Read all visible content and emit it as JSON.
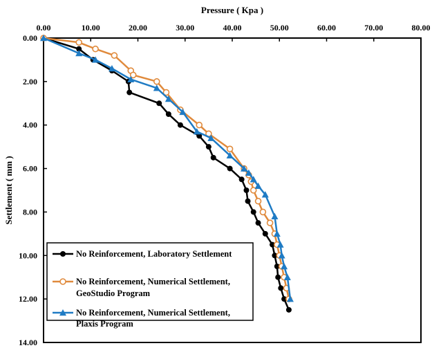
{
  "chart_data": {
    "type": "line",
    "xlabel": "Pressure ( Kpa )",
    "ylabel": "Settlement ( mm )",
    "xlim": [
      0,
      80
    ],
    "ylim": [
      0,
      14
    ],
    "x_axis_position": "top",
    "y_axis_inverted": true,
    "x_ticks": [
      "0.00",
      "10.00",
      "20.00",
      "30.00",
      "40.00",
      "50.00",
      "60.00",
      "70.00",
      "80.00"
    ],
    "y_ticks": [
      "0.00",
      "2.00",
      "4.00",
      "6.00",
      "8.00",
      "10.00",
      "12.00",
      "14.00"
    ],
    "grid": false,
    "legend_position": "bottom-left",
    "series": [
      {
        "name": "No Reinforcement, Laboratory Settlement",
        "color": "#000000",
        "marker": "filled-circle",
        "points": [
          [
            0,
            0
          ],
          [
            7.5,
            0.5
          ],
          [
            10.5,
            1.0
          ],
          [
            14.5,
            1.5
          ],
          [
            18,
            2.0
          ],
          [
            18.2,
            2.5
          ],
          [
            24.5,
            3.0
          ],
          [
            26.5,
            3.5
          ],
          [
            29,
            4.0
          ],
          [
            33,
            4.5
          ],
          [
            35,
            5.0
          ],
          [
            36,
            5.5
          ],
          [
            39.5,
            6.0
          ],
          [
            42,
            6.5
          ],
          [
            43,
            7.0
          ],
          [
            43.3,
            7.5
          ],
          [
            44.5,
            8.0
          ],
          [
            45.5,
            8.5
          ],
          [
            47,
            9.0
          ],
          [
            48.5,
            9.5
          ],
          [
            49,
            10.0
          ],
          [
            49.5,
            10.5
          ],
          [
            49.7,
            11.0
          ],
          [
            50.3,
            11.5
          ],
          [
            51,
            12.0
          ],
          [
            52,
            12.5
          ]
        ]
      },
      {
        "name": "No Reinforcement, Numerical Settlement, GeoStudio Program",
        "color": "#E08A3C",
        "marker": "open-circle",
        "points": [
          [
            0,
            0
          ],
          [
            7.5,
            0.2
          ],
          [
            11,
            0.5
          ],
          [
            15,
            0.8
          ],
          [
            18.5,
            1.5
          ],
          [
            19,
            1.7
          ],
          [
            24,
            2.0
          ],
          [
            26,
            2.5
          ],
          [
            29,
            3.3
          ],
          [
            33,
            4.0
          ],
          [
            35,
            4.4
          ],
          [
            39.5,
            5.1
          ],
          [
            42.5,
            6.0
          ],
          [
            43.5,
            6.3
          ],
          [
            44,
            6.6
          ],
          [
            44.5,
            7.0
          ],
          [
            45.5,
            7.5
          ],
          [
            46.5,
            8.0
          ],
          [
            48,
            8.5
          ],
          [
            49,
            9.0
          ],
          [
            49.5,
            9.5
          ],
          [
            50,
            10.0
          ],
          [
            50.5,
            10.5
          ],
          [
            51,
            11.0
          ],
          [
            51.5,
            11.5
          ],
          [
            52,
            12.0
          ]
        ]
      },
      {
        "name": "No Reinforcement, Numerical Settlement, Plaxis Program",
        "color": "#1F7BC4",
        "marker": "filled-triangle",
        "points": [
          [
            0,
            0
          ],
          [
            7.5,
            0.7
          ],
          [
            11,
            1.0
          ],
          [
            14.5,
            1.4
          ],
          [
            18.5,
            1.9
          ],
          [
            24,
            2.3
          ],
          [
            26.5,
            2.8
          ],
          [
            29.5,
            3.4
          ],
          [
            32.5,
            4.3
          ],
          [
            35.5,
            4.6
          ],
          [
            39.5,
            5.4
          ],
          [
            42.5,
            6.0
          ],
          [
            43.5,
            6.2
          ],
          [
            44.5,
            6.5
          ],
          [
            45.5,
            6.8
          ],
          [
            47,
            7.2
          ],
          [
            49,
            8.2
          ],
          [
            49.5,
            9.0
          ],
          [
            50.2,
            9.5
          ],
          [
            50.5,
            10.0
          ],
          [
            51,
            10.5
          ],
          [
            51.7,
            11.0
          ],
          [
            52.3,
            12.0
          ]
        ]
      }
    ]
  }
}
